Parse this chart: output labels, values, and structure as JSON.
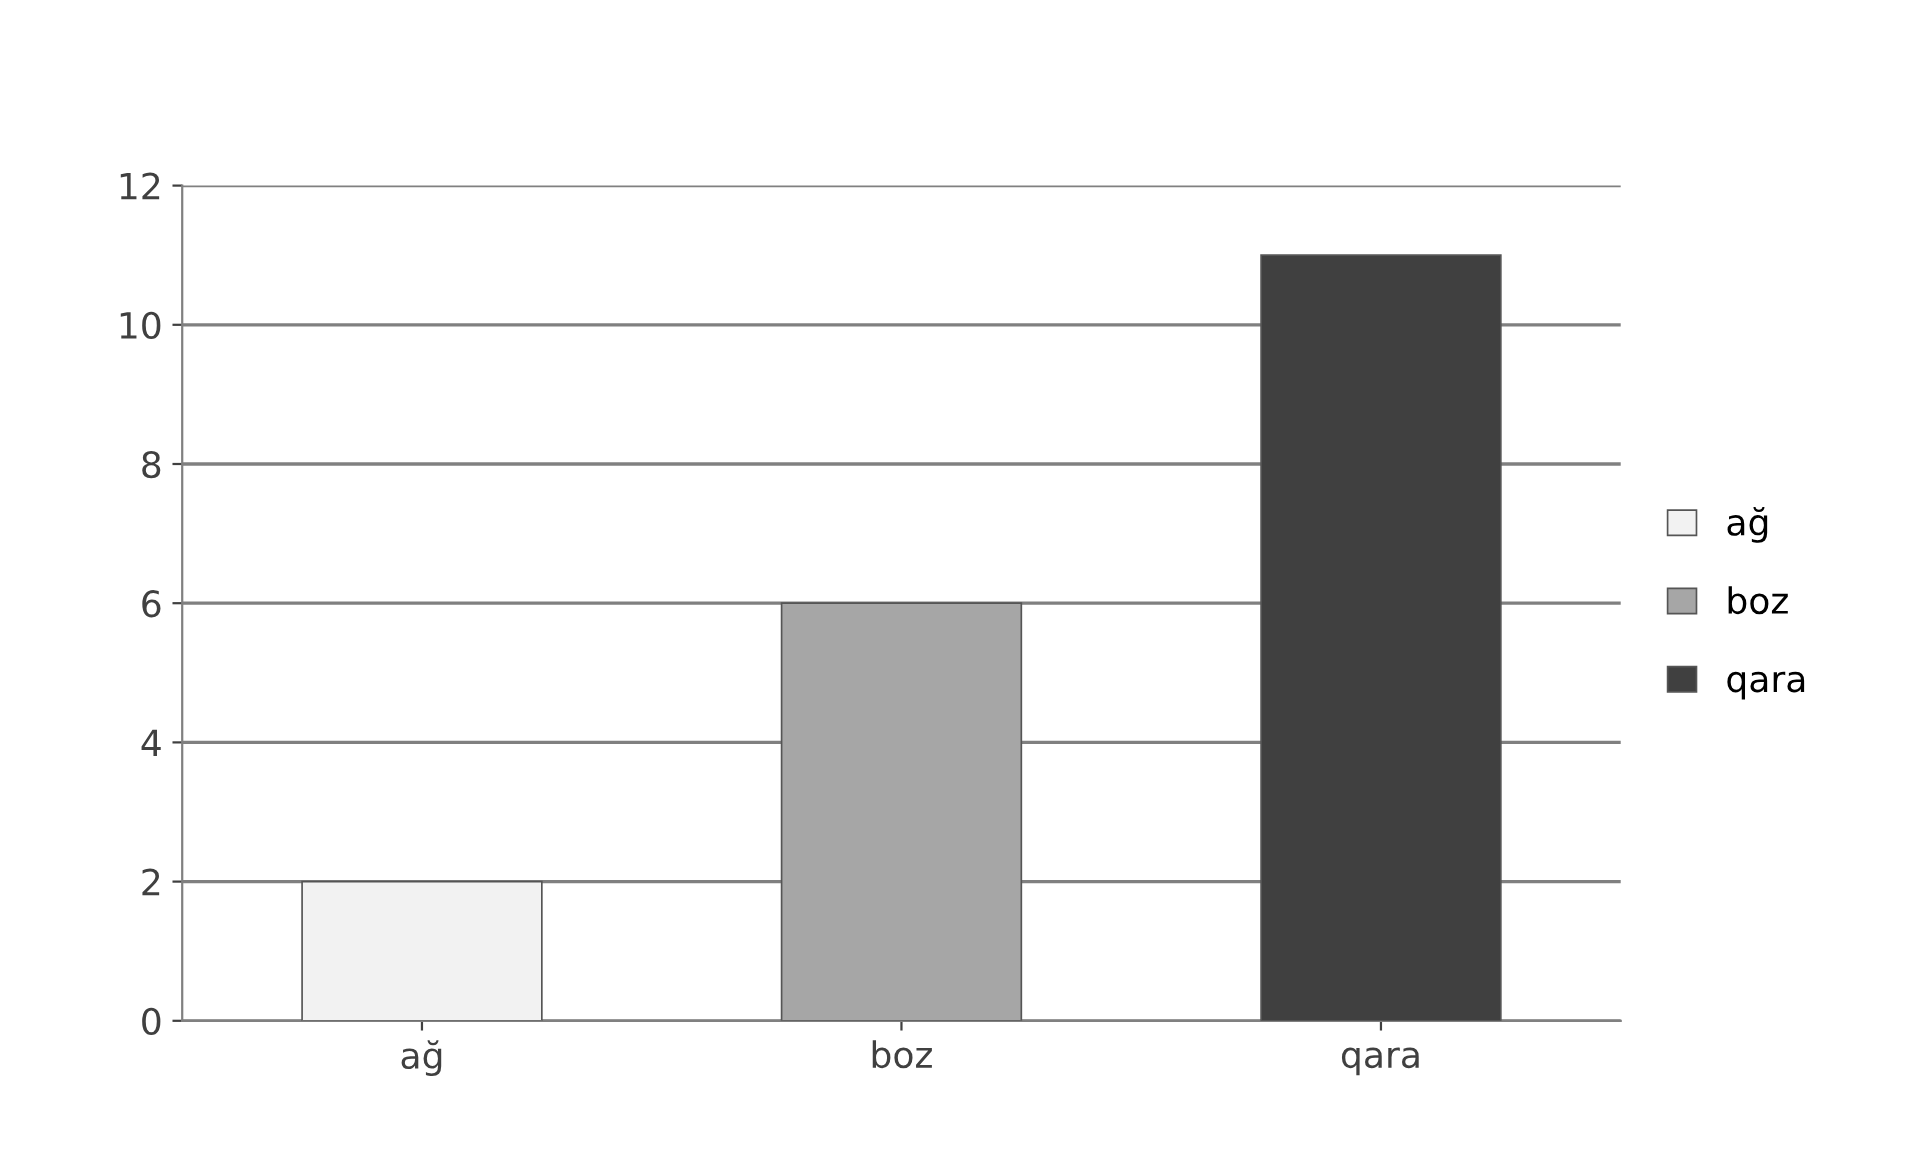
{
  "chart_data": {
    "type": "bar",
    "categories": [
      "ağ",
      "boz",
      "qara"
    ],
    "series": [
      {
        "name": "ağ",
        "color": "#f2f2f2",
        "values": [
          2,
          null,
          null
        ]
      },
      {
        "name": "boz",
        "color": "#a6a6a6",
        "values": [
          null,
          6,
          null
        ]
      },
      {
        "name": "qara",
        "color": "#404040",
        "values": [
          null,
          null,
          11
        ]
      }
    ],
    "ylim": [
      0,
      12
    ],
    "yticks": [
      0,
      2,
      4,
      6,
      8,
      10,
      12
    ],
    "grid": "y",
    "legend": "right"
  }
}
